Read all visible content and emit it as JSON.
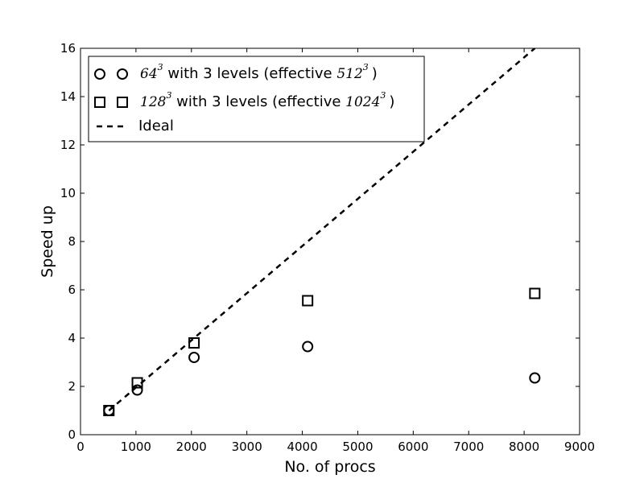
{
  "chart_data": {
    "type": "scatter",
    "xlabel": "No. of procs",
    "ylabel": "Speed up",
    "xlim": [
      0,
      9000
    ],
    "ylim": [
      0,
      16
    ],
    "xticks": [
      "0",
      "1000",
      "2000",
      "3000",
      "4000",
      "5000",
      "6000",
      "7000",
      "8000",
      "9000"
    ],
    "yticks": [
      "0",
      "2",
      "4",
      "6",
      "8",
      "10",
      "12",
      "14",
      "16"
    ],
    "grid": false,
    "legend_position": "top-left",
    "series": [
      {
        "marker": "circle",
        "legend": {
          "base": "64",
          "exp": "3",
          "middle": " with 3 levels (effective ",
          "eff_base": "512",
          "eff_exp": "3",
          "close": ")"
        },
        "points": [
          {
            "x": 512,
            "y": 1.0
          },
          {
            "x": 1024,
            "y": 1.85
          },
          {
            "x": 2048,
            "y": 3.2
          },
          {
            "x": 4096,
            "y": 3.65
          },
          {
            "x": 8192,
            "y": 2.35
          }
        ]
      },
      {
        "marker": "square",
        "legend": {
          "base": "128",
          "exp": "3",
          "middle": " with 3 levels (effective ",
          "eff_base": "1024",
          "eff_exp": "3",
          "close": ")"
        },
        "points": [
          {
            "x": 512,
            "y": 1.0
          },
          {
            "x": 1024,
            "y": 2.15
          },
          {
            "x": 2048,
            "y": 3.8
          },
          {
            "x": 4096,
            "y": 5.55
          },
          {
            "x": 8192,
            "y": 5.85
          }
        ]
      }
    ],
    "ideal": {
      "legend": "Ideal",
      "line_style": "dashed",
      "points": [
        {
          "x": 512,
          "y": 1
        },
        {
          "x": 8192,
          "y": 16
        }
      ]
    }
  }
}
